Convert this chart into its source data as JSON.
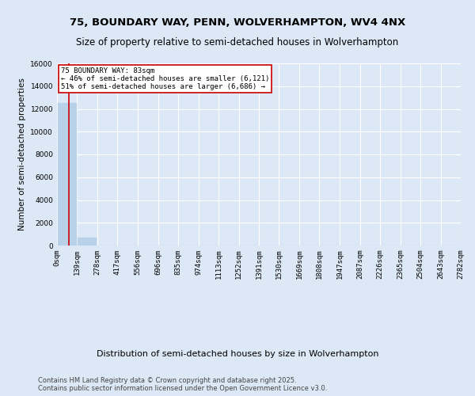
{
  "title": "75, BOUNDARY WAY, PENN, WOLVERHAMPTON, WV4 4NX",
  "subtitle": "Size of property relative to semi-detached houses in Wolverhampton",
  "xlabel": "Distribution of semi-detached houses by size in Wolverhampton",
  "ylabel": "Number of semi-detached properties",
  "property_size": 83,
  "property_label": "75 BOUNDARY WAY: 83sqm",
  "pct_smaller": 46,
  "count_smaller": 6121,
  "pct_larger": 51,
  "count_larger": 6686,
  "bin_edges": [
    0,
    139,
    278,
    417,
    556,
    696,
    835,
    974,
    1113,
    1252,
    1391,
    1530,
    1669,
    1808,
    1947,
    2087,
    2226,
    2365,
    2504,
    2643,
    2782
  ],
  "bin_labels": [
    "0sqm",
    "139sqm",
    "278sqm",
    "417sqm",
    "556sqm",
    "696sqm",
    "835sqm",
    "974sqm",
    "1113sqm",
    "1252sqm",
    "1391sqm",
    "1530sqm",
    "1669sqm",
    "1808sqm",
    "1947sqm",
    "2087sqm",
    "2226sqm",
    "2365sqm",
    "2504sqm",
    "2643sqm",
    "2782sqm"
  ],
  "counts": [
    12500,
    700,
    30,
    5,
    2,
    1,
    1,
    0,
    0,
    0,
    0,
    0,
    0,
    0,
    0,
    0,
    0,
    0,
    0,
    0
  ],
  "bar_color": "#b8d0e8",
  "bar_edge_color": "#b8d0e8",
  "vline_color": "#cc0000",
  "annotation_box_color": "#cc0000",
  "background_color": "#dce8f5",
  "grid_color": "#ffffff",
  "footer_text": "Contains HM Land Registry data © Crown copyright and database right 2025.\nContains public sector information licensed under the Open Government Licence v3.0.",
  "ylim": [
    0,
    16000
  ],
  "yticks": [
    0,
    2000,
    4000,
    6000,
    8000,
    10000,
    12000,
    14000,
    16000
  ],
  "title_fontsize": 9.5,
  "subtitle_fontsize": 8.5,
  "xlabel_fontsize": 8,
  "ylabel_fontsize": 7.5,
  "tick_fontsize": 6.5,
  "ann_fontsize": 6.5,
  "footer_fontsize": 6
}
